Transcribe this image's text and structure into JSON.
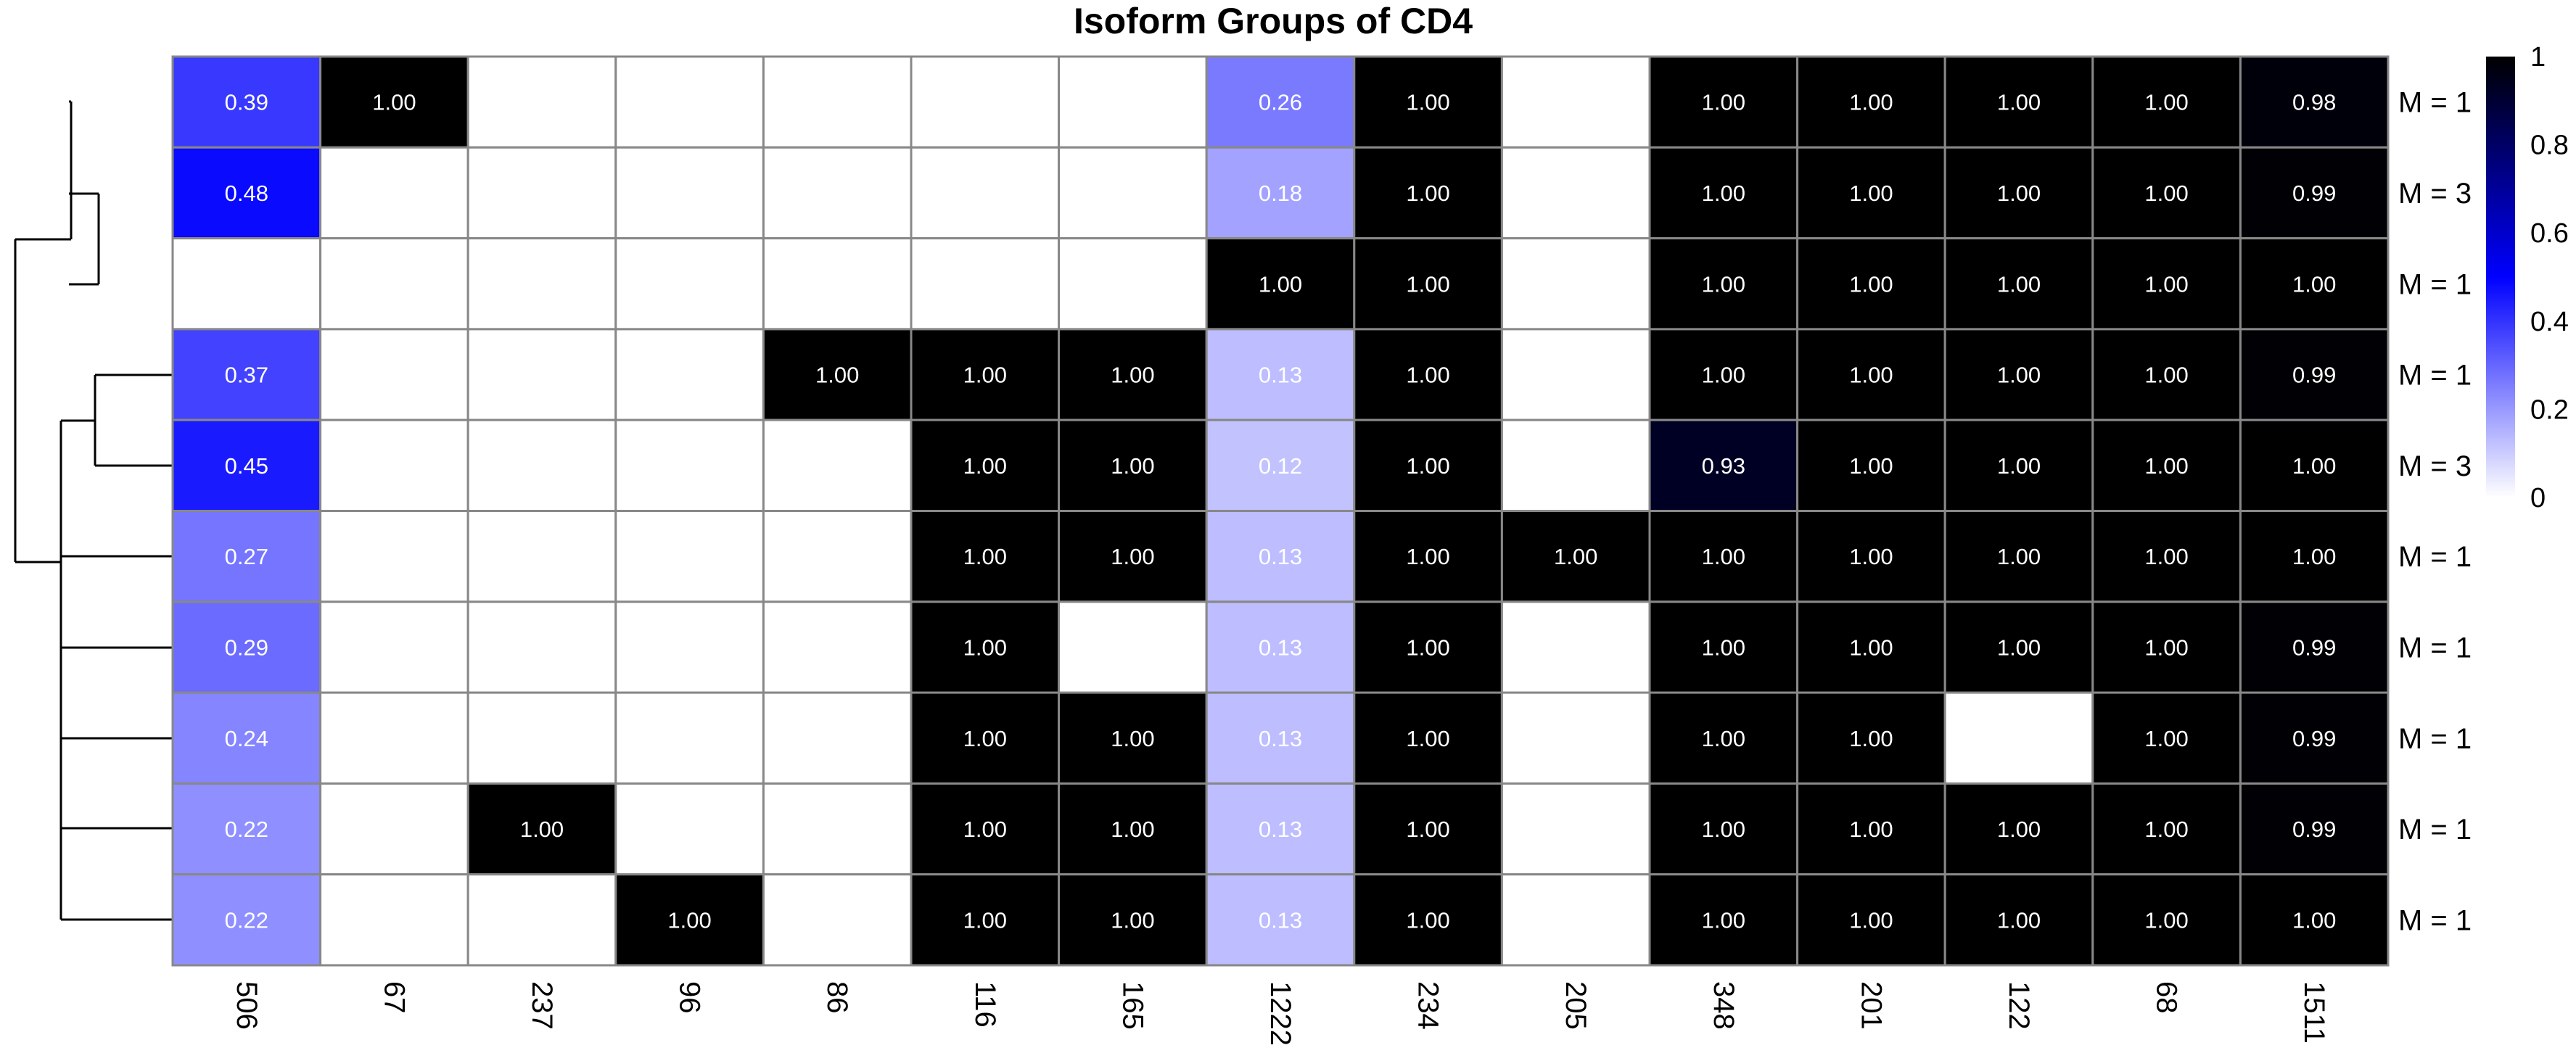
{
  "chart_data": {
    "type": "heatmap",
    "title": "Isoform Groups of CD4",
    "columns": [
      "506",
      "67",
      "237",
      "96",
      "86",
      "116",
      "165",
      "1222",
      "234",
      "205",
      "348",
      "201",
      "122",
      "68",
      "1511"
    ],
    "row_labels": [
      "M = 1",
      "M = 3",
      "M = 1",
      "M = 1",
      "M = 3",
      "M = 1",
      "M = 1",
      "M = 1",
      "M = 1",
      "M = 1"
    ],
    "values": [
      [
        0.39,
        1.0,
        null,
        null,
        null,
        null,
        null,
        0.26,
        1.0,
        null,
        1.0,
        1.0,
        1.0,
        1.0,
        0.98
      ],
      [
        0.48,
        null,
        null,
        null,
        null,
        null,
        null,
        0.18,
        1.0,
        null,
        1.0,
        1.0,
        1.0,
        1.0,
        0.99
      ],
      [
        null,
        null,
        null,
        null,
        null,
        null,
        null,
        1.0,
        1.0,
        null,
        1.0,
        1.0,
        1.0,
        1.0,
        1.0
      ],
      [
        0.37,
        null,
        null,
        null,
        1.0,
        1.0,
        1.0,
        0.13,
        1.0,
        null,
        1.0,
        1.0,
        1.0,
        1.0,
        0.99
      ],
      [
        0.45,
        null,
        null,
        null,
        null,
        1.0,
        1.0,
        0.12,
        1.0,
        null,
        0.93,
        1.0,
        1.0,
        1.0,
        1.0
      ],
      [
        0.27,
        null,
        null,
        null,
        null,
        1.0,
        1.0,
        0.13,
        1.0,
        1.0,
        1.0,
        1.0,
        1.0,
        1.0,
        1.0
      ],
      [
        0.29,
        null,
        null,
        null,
        null,
        1.0,
        null,
        0.13,
        1.0,
        null,
        1.0,
        1.0,
        1.0,
        1.0,
        0.99
      ],
      [
        0.24,
        null,
        null,
        null,
        null,
        1.0,
        1.0,
        0.13,
        1.0,
        null,
        1.0,
        1.0,
        null,
        1.0,
        0.99
      ],
      [
        0.22,
        null,
        1.0,
        null,
        null,
        1.0,
        1.0,
        0.13,
        1.0,
        null,
        1.0,
        1.0,
        1.0,
        1.0,
        0.99
      ],
      [
        0.22,
        null,
        null,
        1.0,
        null,
        1.0,
        1.0,
        0.13,
        1.0,
        null,
        1.0,
        1.0,
        1.0,
        1.0,
        1.0
      ]
    ],
    "value_range": [
      0,
      1
    ],
    "color_scale": [
      "#ffffff",
      "#0000ff",
      "#000000"
    ],
    "legend": {
      "ticks": [
        "1",
        "0.8",
        "0.6",
        "0.4",
        "0.2",
        "0"
      ],
      "placement": "right"
    },
    "row_dendrogram": true,
    "grid_color": "#888888"
  }
}
